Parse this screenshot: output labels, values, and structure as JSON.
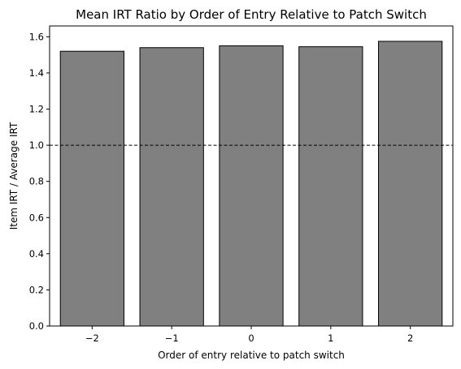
{
  "chart_data": {
    "type": "bar",
    "title": "Mean IRT Ratio by Order of Entry Relative to Patch Switch",
    "xlabel": "Order of entry relative to patch switch",
    "ylabel": "Item IRT / Average IRT",
    "categories": [
      "−2",
      "−1",
      "0",
      "1",
      "2"
    ],
    "values": [
      1.52,
      1.54,
      1.55,
      1.545,
      1.575
    ],
    "ylim": [
      0,
      1.66
    ],
    "yticks": [
      "0.0",
      "0.2",
      "0.4",
      "0.6",
      "0.8",
      "1.0",
      "1.2",
      "1.4",
      "1.6"
    ],
    "reference_line": {
      "y": 1.0,
      "style": "dashed",
      "color": "#000000"
    },
    "bar_color": "#808080",
    "bar_edge_color": "#000000",
    "grid": false,
    "legend": "none"
  }
}
